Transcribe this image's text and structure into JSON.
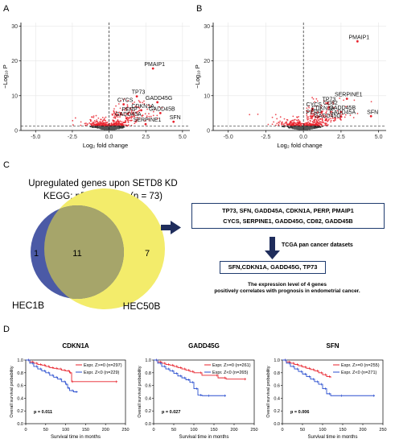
{
  "panel_labels": {
    "a": "A",
    "b": "B",
    "c": "C",
    "d": "D"
  },
  "volcano_common": {
    "xlabel": "Log₂ fold change",
    "ylabel": "−Log₁₀ P",
    "xticks": [
      "-5.0",
      "-2.5",
      "0.0",
      "2.5",
      "5.0"
    ],
    "yticks": [
      "0",
      "10",
      "20",
      "30"
    ]
  },
  "chart_data": [
    {
      "type": "scatter",
      "panel": "A",
      "xlim": [
        -6,
        5.5
      ],
      "ylim": [
        0,
        31
      ],
      "xlabel": "Log₂ fold change",
      "ylabel": "−Log₁₀ P",
      "thresholds": {
        "fc": 0,
        "p": 1.3
      },
      "labels": [
        {
          "name": "PMAIP1",
          "x": 3.1,
          "y": 18.5
        },
        {
          "name": "TP73",
          "x": 2.0,
          "y": 10.5
        },
        {
          "name": "GADD45G",
          "x": 3.4,
          "y": 8.8
        },
        {
          "name": "CYCS",
          "x": 1.1,
          "y": 8.2
        },
        {
          "name": "CDKN1A",
          "x": 2.3,
          "y": 6.5
        },
        {
          "name": "GADD45B",
          "x": 3.6,
          "y": 5.7
        },
        {
          "name": "PERP",
          "x": 1.4,
          "y": 5.5
        },
        {
          "name": "GADD45A",
          "x": 1.3,
          "y": 4.2
        },
        {
          "name": "SFN",
          "x": 4.5,
          "y": 3.2
        },
        {
          "name": "SERPINE1",
          "x": 2.6,
          "y": 2.5
        }
      ]
    },
    {
      "type": "scatter",
      "panel": "B",
      "xlim": [
        -6,
        5.5
      ],
      "ylim": [
        0,
        31
      ],
      "xlabel": "Log₂ fold change",
      "ylabel": "−Log₁₀ P",
      "thresholds": {
        "fc": 0,
        "p": 1.3
      },
      "labels": [
        {
          "name": "PMAIP1",
          "x": 3.7,
          "y": 26.3
        },
        {
          "name": "SERPINE1",
          "x": 3.0,
          "y": 9.8
        },
        {
          "name": "TP73",
          "x": 1.7,
          "y": 8.5
        },
        {
          "name": "CD82",
          "x": 1.8,
          "y": 7.4
        },
        {
          "name": "CYCS",
          "x": 0.7,
          "y": 6.9
        },
        {
          "name": "CDKN1A",
          "x": 1.3,
          "y": 5.9
        },
        {
          "name": "GADD45B",
          "x": 2.6,
          "y": 6.0
        },
        {
          "name": "SFN",
          "x": 4.6,
          "y": 4.8
        },
        {
          "name": "PERP",
          "x": 0.7,
          "y": 4.7
        },
        {
          "name": "GADD45A",
          "x": 2.6,
          "y": 4.7
        },
        {
          "name": "GADD45G",
          "x": 1.6,
          "y": 3.7
        }
      ]
    },
    {
      "type": "line",
      "panel": "D",
      "title": "CDKN1A",
      "xlabel": "Survival time in months",
      "ylabel": "Overall survival probability",
      "xlim": [
        0,
        250
      ],
      "ylim": [
        0,
        1.0
      ],
      "xticks": [
        "0",
        "50",
        "100",
        "150",
        "200",
        "250"
      ],
      "yticks": [
        "0.0",
        "0.2",
        "0.4",
        "0.6",
        "0.8",
        "1.0"
      ],
      "pvalue": "p = 0.011",
      "series": [
        {
          "name": "Expr. Z>=0 (n=297)",
          "color": "#e8212b",
          "x": [
            0,
            10,
            20,
            30,
            40,
            50,
            60,
            70,
            80,
            90,
            100,
            110,
            115,
            120,
            230
          ],
          "y": [
            1.0,
            0.97,
            0.95,
            0.93,
            0.92,
            0.9,
            0.88,
            0.87,
            0.86,
            0.84,
            0.83,
            0.8,
            0.66,
            0.66,
            0.66
          ]
        },
        {
          "name": "Expr. Z<0 (n=229)",
          "color": "#2a4fcf",
          "x": [
            0,
            10,
            20,
            30,
            40,
            50,
            60,
            70,
            80,
            90,
            100,
            105,
            110,
            120,
            130
          ],
          "y": [
            1.0,
            0.95,
            0.9,
            0.86,
            0.83,
            0.8,
            0.76,
            0.73,
            0.7,
            0.66,
            0.62,
            0.56,
            0.52,
            0.5,
            0.5
          ]
        }
      ]
    },
    {
      "type": "line",
      "panel": "D",
      "title": "GADD45G",
      "xlabel": "Survival time in months",
      "ylabel": "Overall survival probability",
      "xlim": [
        0,
        250
      ],
      "ylim": [
        0,
        1.0
      ],
      "xticks": [
        "0",
        "50",
        "100",
        "150",
        "200",
        "250"
      ],
      "yticks": [
        "0.0",
        "0.2",
        "0.4",
        "0.6",
        "0.8",
        "1.0"
      ],
      "pvalue": "p = 0.027",
      "series": [
        {
          "name": "Expr. Z>=0 (n=261)",
          "color": "#e8212b",
          "x": [
            0,
            10,
            20,
            30,
            40,
            50,
            60,
            70,
            80,
            90,
            100,
            120,
            160,
            180,
            230
          ],
          "y": [
            1.0,
            0.97,
            0.95,
            0.93,
            0.92,
            0.9,
            0.88,
            0.86,
            0.84,
            0.82,
            0.8,
            0.76,
            0.72,
            0.7,
            0.7
          ]
        },
        {
          "name": "Expr. Z<0 (n=265)",
          "color": "#2a4fcf",
          "x": [
            0,
            10,
            20,
            30,
            40,
            50,
            60,
            70,
            80,
            90,
            100,
            110,
            120,
            140,
            180
          ],
          "y": [
            1.0,
            0.95,
            0.9,
            0.86,
            0.83,
            0.79,
            0.75,
            0.72,
            0.69,
            0.65,
            0.55,
            0.45,
            0.44,
            0.44,
            0.44
          ]
        }
      ]
    },
    {
      "type": "line",
      "panel": "D",
      "title": "SFN",
      "xlabel": "Survival time in months",
      "ylabel": "Overall survival probability",
      "xlim": [
        0,
        250
      ],
      "ylim": [
        0,
        1.0
      ],
      "xticks": [
        "0",
        "50",
        "100",
        "150",
        "200",
        "250"
      ],
      "yticks": [
        "0.0",
        "0.2",
        "0.4",
        "0.6",
        "0.8",
        "1.0"
      ],
      "pvalue": "p = 0.006",
      "series": [
        {
          "name": "Expr. Z>=0 (n=255)",
          "color": "#e8212b",
          "x": [
            0,
            10,
            20,
            30,
            40,
            50,
            60,
            70,
            80,
            90,
            100,
            110,
            120
          ],
          "y": [
            1.0,
            0.97,
            0.95,
            0.93,
            0.91,
            0.89,
            0.87,
            0.85,
            0.83,
            0.8,
            0.77,
            0.74,
            0.72
          ]
        },
        {
          "name": "Expr. Z<0 (n=271)",
          "color": "#2a4fcf",
          "x": [
            0,
            10,
            20,
            30,
            40,
            50,
            60,
            70,
            80,
            90,
            100,
            110,
            120,
            150,
            230
          ],
          "y": [
            1.0,
            0.95,
            0.9,
            0.86,
            0.82,
            0.78,
            0.74,
            0.7,
            0.66,
            0.62,
            0.55,
            0.47,
            0.44,
            0.44,
            0.44
          ]
        }
      ]
    }
  ],
  "panel_c": {
    "title_line1": "Upregulated genes upon SETD8 KD",
    "title_line2": "KEGG: p53 pathway (n = 73)",
    "venn": {
      "left_only": "1",
      "overlap": "11",
      "right_only": "7",
      "left_label": "HEC1B",
      "right_label": "HEC50B",
      "left_color": "#4b5aa6",
      "right_color": "#f3ec6b",
      "overlap_color": "#a6a56a"
    },
    "gene_box_line1": "TP73, SFN, GADD45A, CDKN1A, PERP, PMAIP1",
    "gene_box_line2": "CYCS, SERPINE1, GADD45G, CD82, GADD45B",
    "arrow_label": "TCGA pan cancer datasets",
    "result_box": "SFN,CDKN1A,  GADD45G, TP73",
    "conclusion_line1": "The expression level of 4 genes",
    "conclusion_line2": "positively correlates with prognosis in endometrial cancer."
  }
}
